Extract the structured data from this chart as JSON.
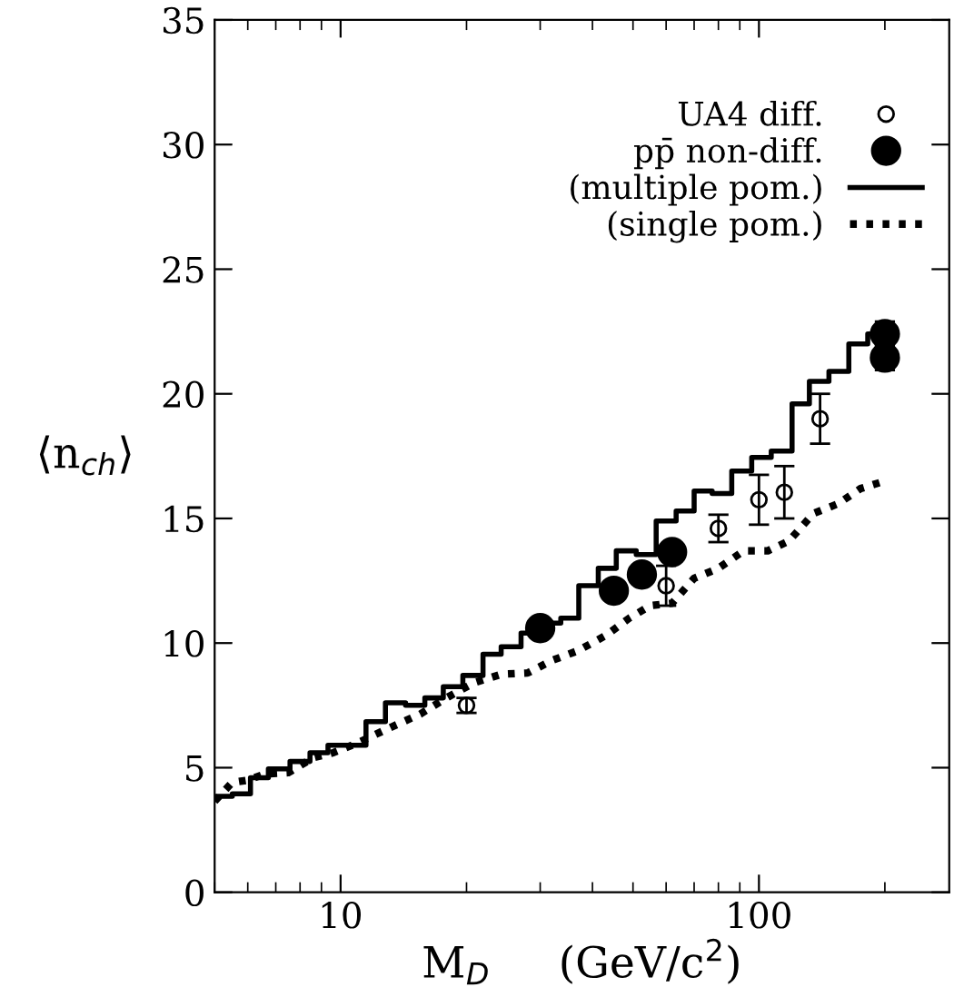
{
  "chart_data": {
    "type": "line",
    "xlabel": "M$_{D}$     (GeV/c$^{2}$)",
    "ylabel": "⟨n$_{ch}$⟩",
    "log": "x",
    "xlim": [
      5,
      285
    ],
    "xticks": [
      10,
      100
    ],
    "ylim": [
      0,
      35
    ],
    "yticks": [
      0,
      5,
      10,
      15,
      20,
      25,
      30,
      35
    ],
    "grid": false,
    "legend": "top right",
    "series": [
      {
        "name": "UA4 diff.",
        "type": "scatter",
        "marker": "circle",
        "color": "#000000",
        "x": [
          20,
          60,
          80,
          100,
          115,
          140
        ],
        "values": [
          7.5,
          12.3,
          14.6,
          15.75,
          16.05,
          19.0
        ],
        "errors": [
          0.3,
          0.8,
          0.55,
          1.0,
          1.05,
          1.0
        ]
      },
      {
        "name": "pp̄ non-diff.",
        "type": "scatter",
        "marker": "circle",
        "color": "#000000",
        "x": [
          30,
          45,
          52.5,
          62,
          200,
          200
        ],
        "values": [
          10.6,
          12.1,
          12.75,
          13.65,
          22.4,
          21.45
        ],
        "errors": [
          null,
          null,
          null,
          null,
          0.5,
          0.5
        ]
      },
      {
        "name": "(multiple pom.)",
        "type": "step",
        "line_style": "solid",
        "color": "#000000",
        "x": [
          5.0,
          5.51,
          6.09,
          6.72,
          7.57,
          8.45,
          9.33,
          11.5,
          12.8,
          14.3,
          15.9,
          17.6,
          19.6,
          21.9,
          24.2,
          27.0,
          30.1,
          33.6,
          37.1,
          41.3,
          45.6,
          50.9,
          56.8,
          63.4,
          70.0,
          77.3,
          86.1,
          96.1,
          107,
          120,
          132,
          147,
          164,
          182,
          198
        ],
        "values": [
          3.85,
          3.95,
          4.6,
          4.95,
          5.25,
          5.6,
          5.9,
          6.85,
          7.6,
          7.5,
          7.8,
          8.25,
          8.7,
          9.55,
          9.85,
          10.4,
          10.8,
          11.0,
          12.3,
          13.0,
          13.7,
          13.55,
          14.9,
          15.3,
          16.1,
          16.0,
          16.9,
          17.45,
          17.7,
          19.6,
          20.5,
          20.9,
          22.0,
          22.4,
          22.4
        ]
      },
      {
        "name": "(single pom.)",
        "line_style": "dotted",
        "color": "#000000",
        "x": [
          5.0,
          5.5,
          6.0,
          6.6,
          7.5,
          8.6,
          9.6,
          11.0,
          13.3,
          15.5,
          17.9,
          20.8,
          24.2,
          28,
          32,
          37,
          43,
          49,
          55,
          62,
          70,
          80,
          92,
          105,
          118,
          135,
          155,
          175,
          200
        ],
        "values": [
          3.65,
          4.4,
          4.5,
          4.75,
          4.8,
          5.4,
          5.6,
          6.0,
          6.65,
          7.15,
          7.8,
          8.4,
          8.75,
          8.8,
          9.3,
          9.7,
          10.3,
          11.0,
          11.5,
          11.6,
          12.6,
          13.0,
          13.7,
          13.7,
          14.1,
          15.2,
          15.6,
          16.2,
          16.5
        ]
      }
    ]
  }
}
